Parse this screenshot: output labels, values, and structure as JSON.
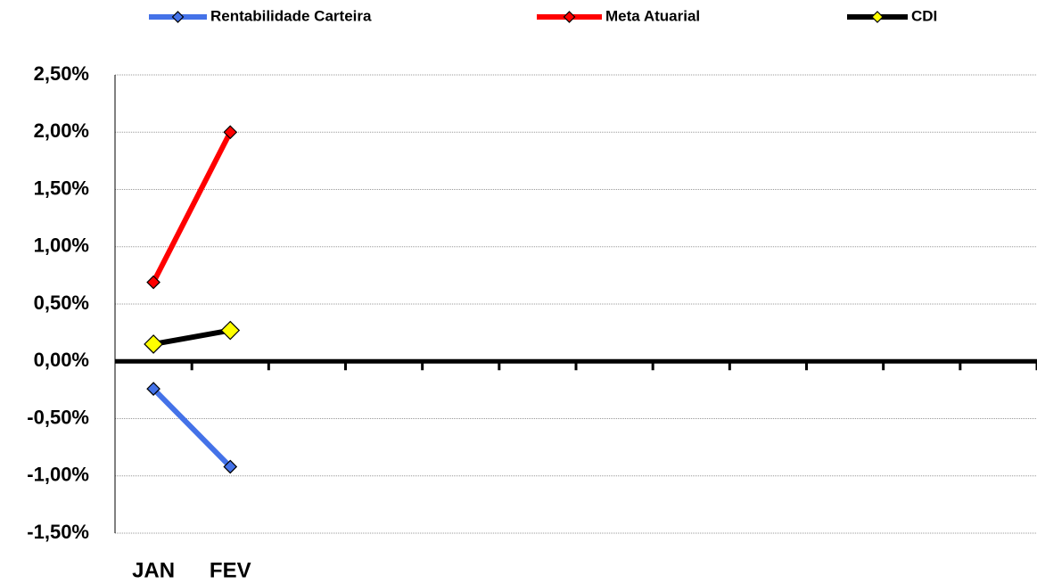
{
  "chart_data": {
    "type": "line",
    "categories": [
      "JAN",
      "FEV",
      null,
      null,
      null,
      null,
      null,
      null,
      null,
      null,
      null,
      null
    ],
    "series": [
      {
        "name": "Rentabilidade Carteira",
        "color": "#4472e8",
        "marker_color": "#4472e8",
        "values": [
          -0.24,
          -0.92,
          null,
          null,
          null,
          null,
          null,
          null,
          null,
          null,
          null,
          null
        ]
      },
      {
        "name": "Meta Atuarial",
        "color": "#ff0000",
        "marker_color": "#ff0000",
        "values": [
          0.69,
          2.0,
          null,
          null,
          null,
          null,
          null,
          null,
          null,
          null,
          null,
          null
        ]
      },
      {
        "name": "CDI",
        "color": "#000000",
        "marker_color": "#ffff00",
        "values": [
          0.15,
          0.27,
          null,
          null,
          null,
          null,
          null,
          null,
          null,
          null,
          null,
          null
        ]
      }
    ],
    "ylim": [
      -1.5,
      2.5
    ],
    "yticks": [
      {
        "value": -1.5,
        "label": "-1,50%"
      },
      {
        "value": -1.0,
        "label": "-1,00%"
      },
      {
        "value": -0.5,
        "label": "-0,50%"
      },
      {
        "value": 0,
        "label": "0,00%"
      },
      {
        "value": 0.5,
        "label": "0,50%"
      },
      {
        "value": 1.0,
        "label": "1,00%"
      },
      {
        "value": 1.5,
        "label": "1,50%"
      },
      {
        "value": 2.0,
        "label": "2,00%"
      },
      {
        "value": 2.5,
        "label": "2,50%"
      }
    ],
    "grid": true,
    "legend": "top"
  }
}
